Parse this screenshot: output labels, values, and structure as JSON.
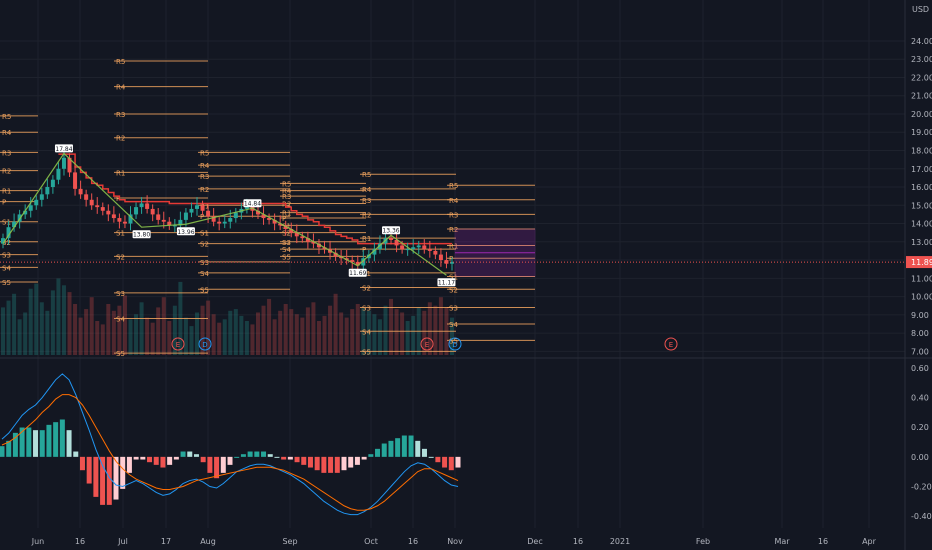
{
  "currency_label": "USD",
  "colors": {
    "background": "#131722",
    "grid": "#1e222d",
    "up": "#26a69a",
    "down": "#ef5350",
    "pivot": "#f0a35e",
    "stop": "#e53935",
    "zigzag": "#8bc34a",
    "macd": "#2196f3",
    "signal": "#ff6d00",
    "last_price": "#ef5350",
    "projection": "#9c27b0"
  },
  "chart_data": [
    {
      "type": "candlestick",
      "panel": "price",
      "x_labels": [
        "Jun",
        "16",
        "Jul",
        "17",
        "Aug",
        "Sep",
        "Oct",
        "16",
        "Nov",
        "Dec",
        "16",
        "2021",
        "Feb",
        "Mar",
        "16",
        "Apr"
      ],
      "y_ticks": [
        "24.00",
        "23.00",
        "22.00",
        "21.00",
        "20.00",
        "19.00",
        "18.00",
        "17.00",
        "16.00",
        "15.00",
        "14.00",
        "13.00",
        "12.00",
        "11.00",
        "10.00",
        "9.00",
        "8.00",
        "7.00"
      ],
      "ylim": [
        6.8,
        24.6
      ],
      "last_price": 11.89,
      "last_price_label": "11.89",
      "pivot_level_names": [
        "R5",
        "R4",
        "R3",
        "R2",
        "R1",
        "P",
        "S1",
        "S2",
        "S3",
        "S4",
        "S5"
      ],
      "pivot_periods": [
        {
          "start": "May 26",
          "end": "Jun 30",
          "levels": {
            "R5": 19.9,
            "R4": 19.0,
            "R3": 17.9,
            "R2": 16.9,
            "R1": 15.8,
            "P": 15.2,
            "S1": 14.1,
            "S2": 13.0,
            "S3": 12.3,
            "S4": 11.6,
            "S5": 10.8
          }
        },
        {
          "start": "Jul 1",
          "end": "Jul 31",
          "levels": {
            "R5": 22.9,
            "R4": 21.5,
            "R3": 20.0,
            "R2": 18.7,
            "R1": 16.8,
            "P": 15.4,
            "S1": 13.5,
            "S2": 12.2,
            "S3": 10.2,
            "S4": 8.8,
            "S5": 6.9
          }
        },
        {
          "start": "Aug 1",
          "end": "Aug 31",
          "levels": {
            "R5": 17.9,
            "R4": 17.2,
            "R3": 16.6,
            "R2": 15.9,
            "R1": 15.0,
            "P": 14.4,
            "S1": 13.5,
            "S2": 12.9,
            "S3": 11.9,
            "S4": 11.3,
            "S5": 10.4
          }
        },
        {
          "start": "Sep 1",
          "end": "Sep 30",
          "levels": {
            "R5": 16.2,
            "R4": 15.8,
            "R3": 15.5,
            "R2": 15.1,
            "R1": 14.6,
            "P": 14.3,
            "S1": 13.9,
            "S2": 13.5,
            "S3": 13.0,
            "S4": 12.6,
            "S5": 12.2
          }
        },
        {
          "start": "Oct 1",
          "end": "Nov 4",
          "levels": {
            "R5": 16.7,
            "R4": 15.9,
            "R3": 15.3,
            "R2": 14.5,
            "R1": 13.2,
            "P": 12.6,
            "S1": 11.3,
            "S2": 10.5,
            "S3": 9.4,
            "S4": 8.1,
            "S5": 7.0
          }
        },
        {
          "start": "Nov 1",
          "end": "Dec 1",
          "levels": {
            "R5": 16.1,
            "R4": 15.3,
            "R3": 14.5,
            "R2": 13.7,
            "R1": 12.8,
            "P": 12.1,
            "S1": 11.1,
            "S2": 10.4,
            "S3": 9.4,
            "S4": 8.5,
            "S5": 7.6
          }
        }
      ],
      "zigzag_labels": [
        "17.84",
        "13.80",
        "13.96",
        "14.84",
        "11.69",
        "13.36",
        "11.17"
      ],
      "earnings_markers": [
        "E",
        "E",
        "E"
      ],
      "dividend_markers": [
        "D",
        "D"
      ],
      "closes": [
        13.2,
        13.8,
        14.1,
        14.5,
        14.7,
        15.0,
        15.3,
        15.6,
        16.0,
        16.4,
        17.0,
        17.6,
        16.8,
        15.9,
        15.6,
        15.3,
        15.0,
        14.9,
        14.7,
        14.5,
        14.3,
        14.1,
        14.0,
        14.5,
        14.9,
        15.1,
        14.8,
        14.5,
        14.2,
        14.1,
        13.9,
        13.9,
        14.2,
        14.6,
        14.8,
        15.0,
        14.7,
        14.4,
        14.1,
        14.0,
        14.1,
        14.3,
        14.6,
        14.8,
        14.9,
        14.7,
        14.5,
        14.3,
        14.2,
        14.0,
        13.9,
        13.7,
        13.5,
        13.3,
        13.2,
        13.0,
        12.9,
        12.7,
        12.6,
        12.4,
        12.2,
        12.1,
        12.0,
        11.9,
        11.7,
        12.1,
        12.3,
        12.6,
        12.9,
        13.2,
        13.1,
        12.8,
        12.6,
        12.6,
        12.7,
        12.8,
        12.6,
        12.5,
        12.3,
        12.0,
        11.8,
        11.9
      ]
    },
    {
      "type": "bar",
      "panel": "volume",
      "values": [
        2.8,
        3.2,
        3.6,
        2.1,
        2.5,
        3.9,
        4.2,
        3.1,
        2.6,
        3.8,
        4.5,
        4.1,
        3.7,
        3.0,
        2.2,
        2.7,
        3.4,
        2.0,
        1.8,
        3.0,
        2.6,
        2.9,
        3.5,
        2.1,
        2.4,
        3.1,
        2.2,
        1.9,
        2.8,
        3.4,
        2.0,
        2.9,
        4.3,
        2.2,
        1.7,
        2.5,
        2.9,
        3.2,
        2.4,
        1.9,
        2.1,
        2.6,
        2.7,
        2.3,
        2.0,
        1.8,
        2.5,
        2.9,
        3.3,
        2.1,
        2.6,
        3.0,
        2.7,
        2.4,
        2.2,
        2.8,
        3.1,
        2.0,
        2.3,
        2.9,
        3.6,
        2.5,
        2.2,
        2.7,
        3.0,
        2.8,
        2.6,
        2.4,
        2.1,
        2.9,
        3.3,
        2.7,
        2.5,
        2.0,
        2.3,
        2.8,
        2.6,
        3.1,
        2.9,
        3.4,
        2.8,
        2.2
      ]
    },
    {
      "type": "line+histogram",
      "panel": "macd",
      "y_ticks": [
        "0.60",
        "0.40",
        "0.20",
        "0.00",
        "-0.20",
        "-0.40"
      ],
      "ylim": [
        -0.48,
        0.64
      ],
      "current_tick": "0.00",
      "series": [
        {
          "values": [
            0.12,
            0.16,
            0.22,
            0.28,
            0.32,
            0.35,
            0.4,
            0.46,
            0.52,
            0.56,
            0.52,
            0.42,
            0.3,
            0.18,
            0.05,
            -0.06,
            -0.14,
            -0.19,
            -0.2,
            -0.18,
            -0.16,
            -0.18,
            -0.21,
            -0.24,
            -0.26,
            -0.25,
            -0.22,
            -0.18,
            -0.16,
            -0.15,
            -0.17,
            -0.2,
            -0.21,
            -0.18,
            -0.14,
            -0.1,
            -0.08,
            -0.06,
            -0.05,
            -0.05,
            -0.06,
            -0.08,
            -0.1,
            -0.12,
            -0.15,
            -0.18,
            -0.22,
            -0.26,
            -0.3,
            -0.33,
            -0.36,
            -0.38,
            -0.39,
            -0.39,
            -0.37,
            -0.34,
            -0.3,
            -0.25,
            -0.2,
            -0.15,
            -0.1,
            -0.06,
            -0.04,
            -0.05,
            -0.08,
            -0.12,
            -0.16,
            -0.19,
            -0.2
          ]
        },
        {
          "values": [
            0.08,
            0.1,
            0.13,
            0.17,
            0.21,
            0.25,
            0.3,
            0.34,
            0.39,
            0.42,
            0.42,
            0.4,
            0.35,
            0.28,
            0.2,
            0.12,
            0.04,
            -0.03,
            -0.08,
            -0.12,
            -0.15,
            -0.17,
            -0.19,
            -0.21,
            -0.22,
            -0.22,
            -0.21,
            -0.2,
            -0.18,
            -0.16,
            -0.15,
            -0.14,
            -0.13,
            -0.12,
            -0.11,
            -0.1,
            -0.09,
            -0.08,
            -0.07,
            -0.07,
            -0.07,
            -0.08,
            -0.09,
            -0.11,
            -0.13,
            -0.15,
            -0.18,
            -0.21,
            -0.24,
            -0.27,
            -0.3,
            -0.33,
            -0.35,
            -0.36,
            -0.36,
            -0.35,
            -0.33,
            -0.3,
            -0.26,
            -0.22,
            -0.18,
            -0.14,
            -0.1,
            -0.08,
            -0.08,
            -0.1,
            -0.12,
            -0.14,
            -0.16
          ]
        }
      ]
    }
  ]
}
